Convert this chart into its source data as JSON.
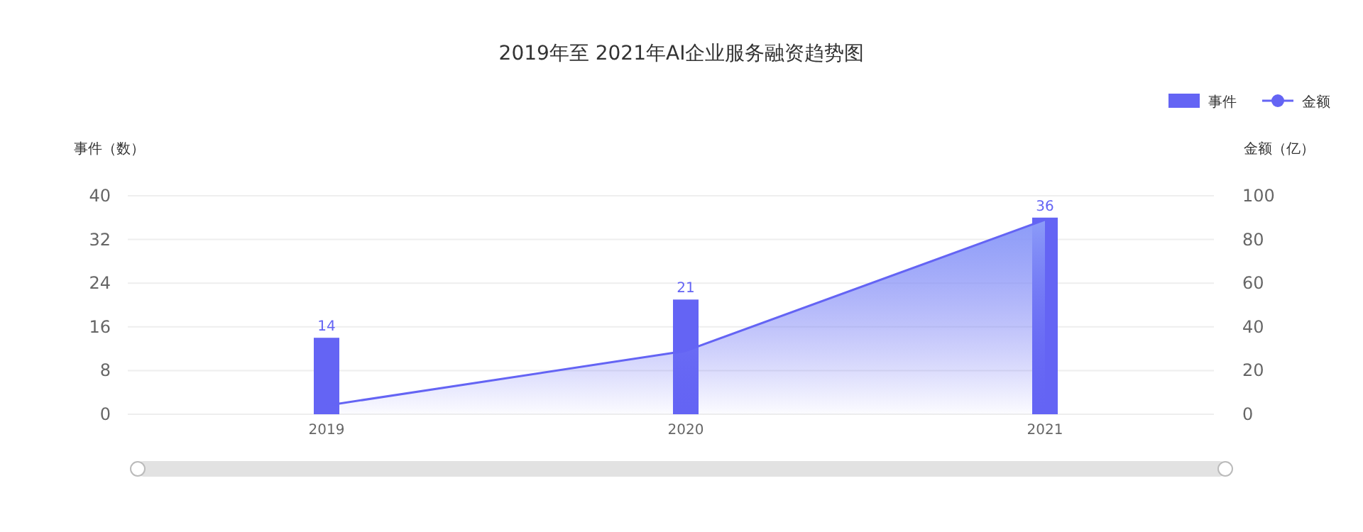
{
  "chart_data": {
    "type": "bar",
    "title": "2019年至 2021年AI企业服务融资趋势图",
    "ylabel": "事件（数）",
    "y2label": "金额（亿）",
    "categories": [
      "2019",
      "2020",
      "2021"
    ],
    "series": [
      {
        "name": "事件",
        "color": "#6464f4",
        "values": [
          14,
          21,
          36
        ],
        "value_labels": [
          "14",
          "21",
          "36"
        ]
      },
      {
        "name": "金额",
        "type": "area",
        "axis": "y2",
        "color": "#6464f4",
        "values": [
          4,
          29,
          89
        ]
      }
    ],
    "ylim": [
      0,
      40
    ],
    "yticks": [
      0,
      8,
      16,
      24,
      32,
      40
    ],
    "y2lim": [
      0,
      100
    ],
    "y2ticks": [
      0,
      20,
      40,
      60,
      80,
      100
    ],
    "grid": "y",
    "legend": "top right",
    "marker": "none"
  }
}
